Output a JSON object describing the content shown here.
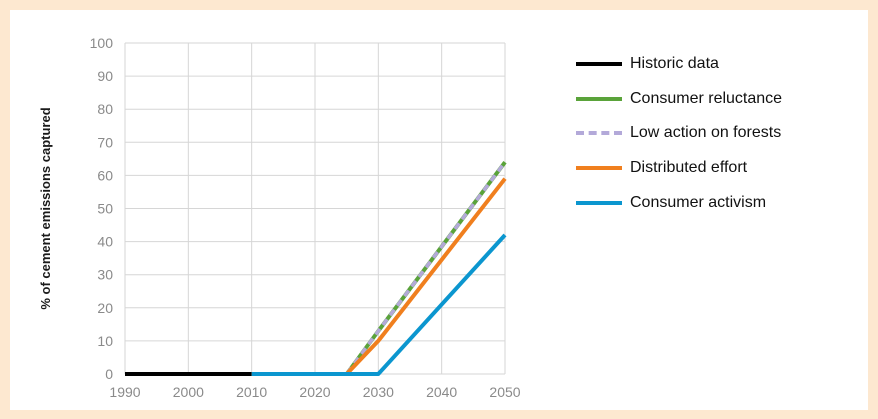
{
  "chart_data": {
    "type": "line",
    "title": "",
    "xlabel": "",
    "ylabel": "% of cement emissions captured",
    "xlim": [
      1990,
      2050
    ],
    "ylim": [
      0,
      100
    ],
    "x_ticks": [
      "1990",
      "2000",
      "2010",
      "2020",
      "2030",
      "2040",
      "2050"
    ],
    "y_ticks": [
      "0",
      "10",
      "20",
      "30",
      "40",
      "50",
      "60",
      "70",
      "80",
      "90",
      "100"
    ],
    "grid": true,
    "legend_position": "right",
    "series": [
      {
        "name": "Historic data",
        "color": "#000000",
        "dashed": false,
        "points": [
          [
            1990,
            0
          ],
          [
            2010,
            0
          ]
        ]
      },
      {
        "name": "Consumer reluctance",
        "color": "#5aa33a",
        "dashed": false,
        "points": [
          [
            2010,
            0
          ],
          [
            2025,
            0
          ],
          [
            2030,
            13
          ],
          [
            2050,
            64
          ]
        ]
      },
      {
        "name": "Low action on forests",
        "color": "#b3a9d9",
        "dashed": true,
        "points": [
          [
            2010,
            0
          ],
          [
            2025,
            0
          ],
          [
            2030,
            13
          ],
          [
            2050,
            64
          ]
        ]
      },
      {
        "name": "Distributed effort",
        "color": "#f07f1e",
        "dashed": false,
        "points": [
          [
            2010,
            0
          ],
          [
            2025,
            0
          ],
          [
            2030,
            10
          ],
          [
            2050,
            59
          ]
        ]
      },
      {
        "name": "Consumer activism",
        "color": "#0b96cf",
        "dashed": false,
        "points": [
          [
            2010,
            0
          ],
          [
            2030,
            0
          ],
          [
            2050,
            42
          ]
        ]
      }
    ]
  }
}
